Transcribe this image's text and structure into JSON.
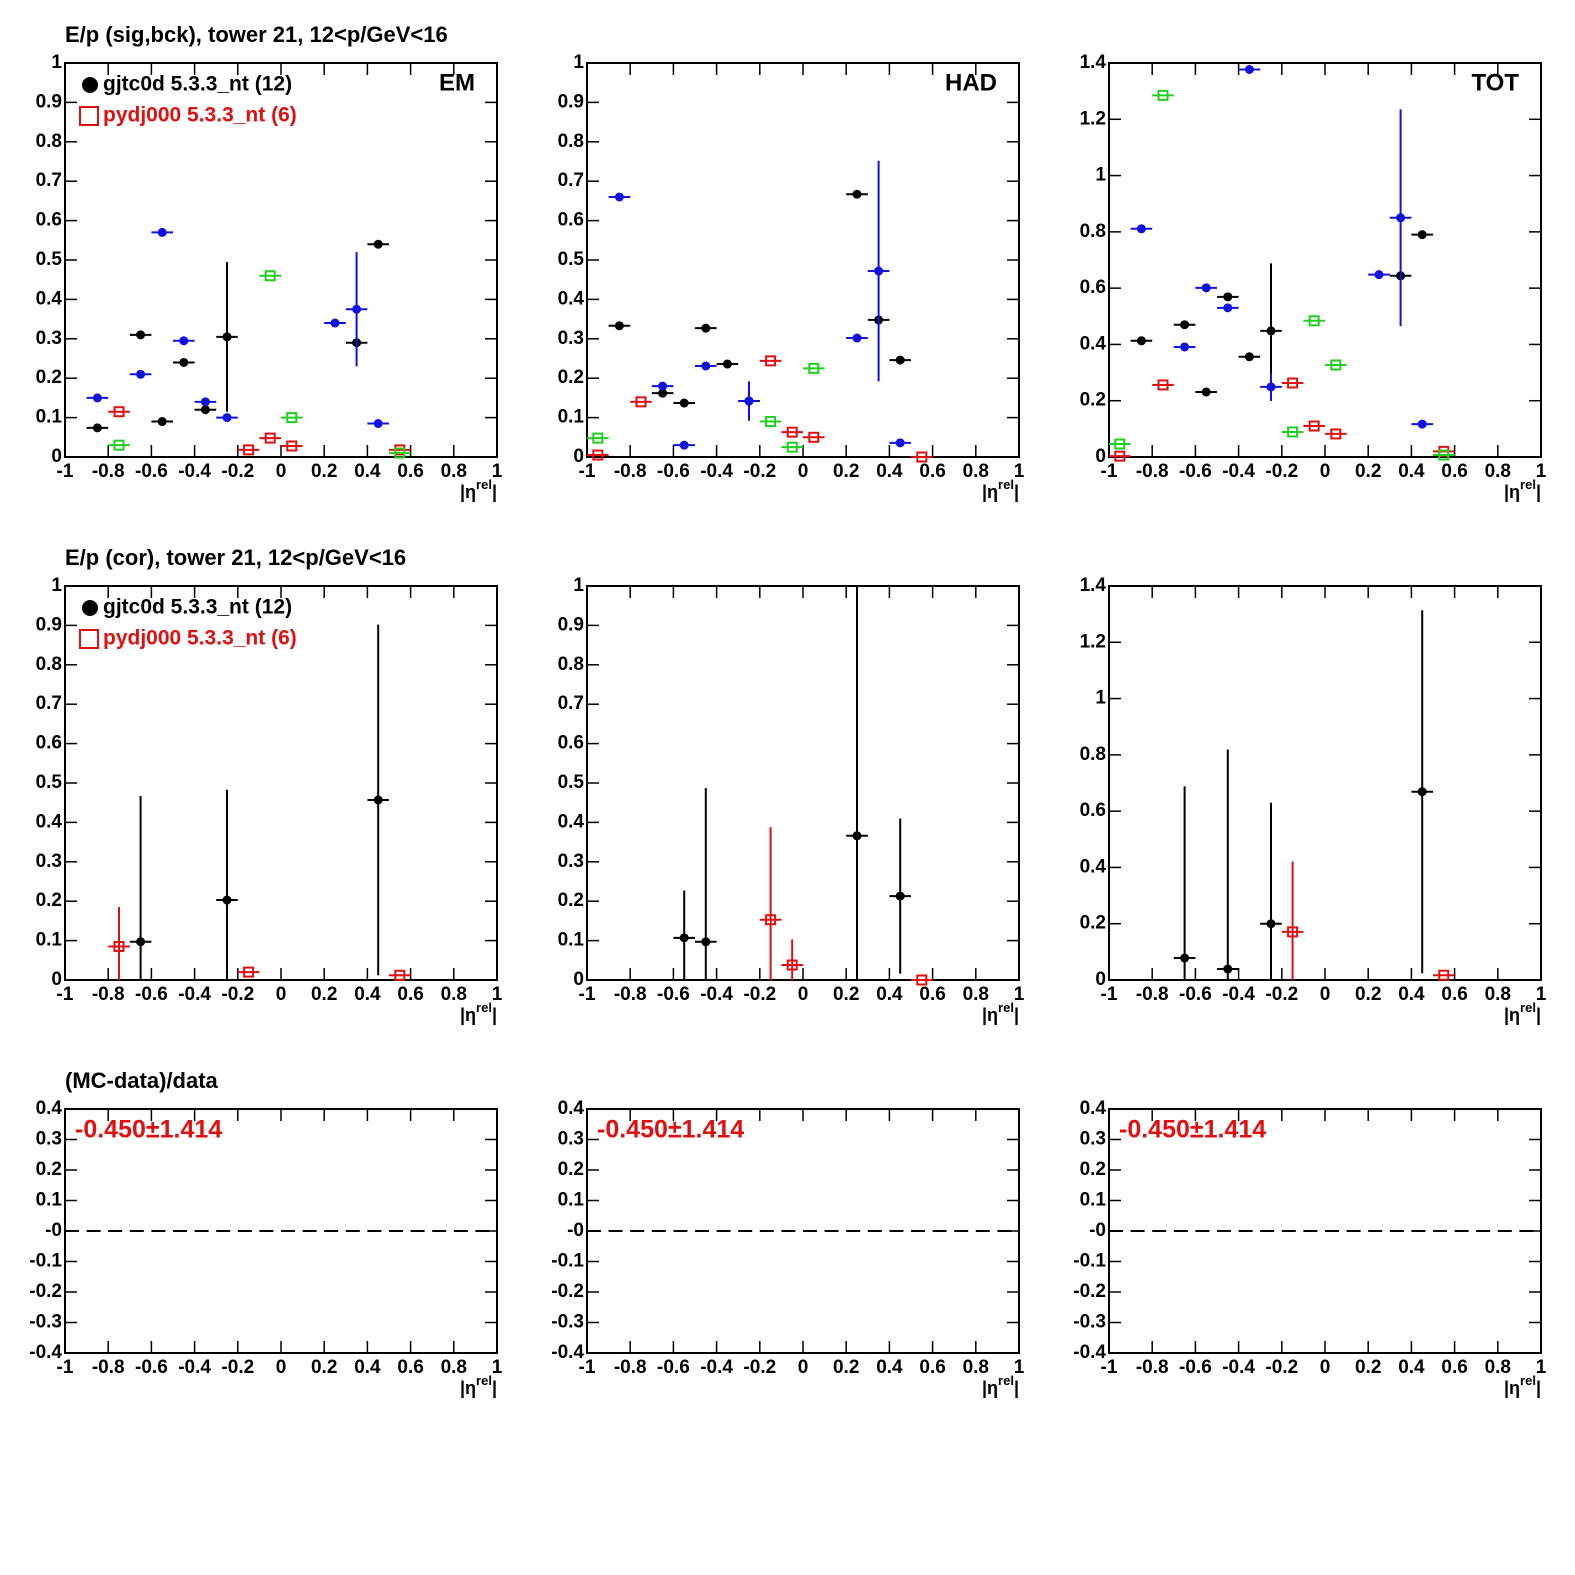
{
  "chart_data": [
    {
      "type": "scatter",
      "title": "E/p (sig,bck), tower 21, 12<p/GeV<16",
      "label": "EM",
      "xlabel": "|η",
      "xlabel_sup": "rel",
      "xlabel_end": "|",
      "xlim": [
        -1,
        1
      ],
      "xticks": [
        -1,
        -0.8,
        -0.6,
        -0.4,
        -0.2,
        0,
        0.2,
        0.4,
        0.6,
        0.8,
        1
      ],
      "ylim": [
        0,
        1
      ],
      "yticks": [
        0,
        0.1,
        0.2,
        0.3,
        0.4,
        0.5,
        0.6,
        0.7,
        0.8,
        0.9,
        1
      ],
      "xerr": 0.05,
      "series": [
        {
          "name": "gjtc0d 5.3.3_nt (12)",
          "color": "#000000",
          "marker": "circle",
          "x": [
            -0.85,
            -0.65,
            -0.55,
            -0.45,
            -0.35,
            -0.25,
            0.35,
            0.45
          ],
          "values": [
            0.074,
            0.31,
            0.09,
            0.24,
            0.12,
            0.305,
            0.29,
            0.54
          ],
          "errors": [
            null,
            null,
            null,
            null,
            null,
            0.19,
            null,
            null
          ]
        },
        {
          "name": "pydj000 5.3.3_nt (6)",
          "color": "#e01010",
          "marker": "open-square",
          "x": [
            -0.75,
            -0.15,
            -0.05,
            0.05,
            0.55
          ],
          "values": [
            0.115,
            0.018,
            0.048,
            0.028,
            0.018
          ]
        },
        {
          "color": "#1010e0",
          "marker": "circle",
          "x": [
            -0.85,
            -0.65,
            -0.55,
            -0.45,
            -0.35,
            -0.25,
            0.25,
            0.35,
            0.45
          ],
          "values": [
            0.15,
            0.21,
            0.57,
            0.295,
            0.14,
            0.1,
            0.34,
            0.375,
            0.085
          ],
          "errors": [
            null,
            null,
            null,
            null,
            null,
            null,
            null,
            0.145,
            null
          ]
        },
        {
          "color": "#20d020",
          "marker": "open-square",
          "x": [
            -0.75,
            -0.05,
            0.05,
            0.55
          ],
          "values": [
            0.03,
            0.46,
            0.1,
            0.01
          ]
        }
      ]
    },
    {
      "type": "scatter",
      "label": "HAD",
      "xlabel": "|η",
      "xlabel_sup": "rel",
      "xlabel_end": "|",
      "xlim": [
        -1,
        1
      ],
      "xticks": [
        -1,
        -0.8,
        -0.6,
        -0.4,
        -0.2,
        0,
        0.2,
        0.4,
        0.6,
        0.8,
        1
      ],
      "ylim": [
        0,
        1
      ],
      "yticks": [
        0,
        0.1,
        0.2,
        0.3,
        0.4,
        0.5,
        0.6,
        0.7,
        0.8,
        0.9,
        1
      ],
      "xerr": 0.05,
      "series": [
        {
          "color": "#000000",
          "marker": "circle",
          "x": [
            -0.85,
            -0.65,
            -0.55,
            -0.45,
            -0.35,
            -0.25,
            0.25,
            0.35,
            0.45
          ],
          "values": [
            0.333,
            0.162,
            0.137,
            0.327,
            0.236,
            0.142,
            0.667,
            0.348,
            0.246
          ]
        },
        {
          "color": "#e01010",
          "marker": "open-square",
          "x": [
            -0.95,
            -0.75,
            -0.15,
            -0.05,
            0.05,
            0.55
          ],
          "values": [
            0.005,
            0.14,
            0.244,
            0.063,
            0.05,
            0
          ]
        },
        {
          "color": "#1010e0",
          "marker": "circle",
          "x": [
            -0.85,
            -0.65,
            -0.55,
            -0.45,
            -0.25,
            0.25,
            0.35,
            0.45
          ],
          "values": [
            0.66,
            0.18,
            0.03,
            0.231,
            0.142,
            0.302,
            0.472,
            0.036
          ],
          "errors": [
            null,
            null,
            null,
            null,
            0.05,
            null,
            0.28,
            null
          ]
        },
        {
          "color": "#20d020",
          "marker": "open-square",
          "x": [
            -0.95,
            -0.15,
            -0.05,
            0.05
          ],
          "values": [
            0.048,
            0.09,
            0.025,
            0.225
          ]
        }
      ]
    },
    {
      "type": "scatter",
      "label": "TOT",
      "xlabel": "|η",
      "xlabel_sup": "rel",
      "xlabel_end": "|",
      "xlim": [
        -1,
        1
      ],
      "xticks": [
        -1,
        -0.8,
        -0.6,
        -0.4,
        -0.2,
        0,
        0.2,
        0.4,
        0.6,
        0.8,
        1
      ],
      "ylim": [
        0,
        1.4
      ],
      "yticks": [
        0,
        0.2,
        0.4,
        0.6,
        0.8,
        1,
        1.2,
        1.4
      ],
      "xerr": 0.05,
      "series": [
        {
          "color": "#000000",
          "marker": "circle",
          "x": [
            -0.85,
            -0.65,
            -0.55,
            -0.45,
            -0.35,
            -0.25,
            0.35,
            0.45
          ],
          "values": [
            0.413,
            0.47,
            0.231,
            0.569,
            0.356,
            0.448,
            0.644,
            0.79
          ],
          "errors": [
            null,
            null,
            null,
            null,
            null,
            0.24,
            null,
            null
          ]
        },
        {
          "color": "#e01010",
          "marker": "open-square",
          "x": [
            -0.95,
            -0.75,
            -0.15,
            -0.05,
            0.05,
            0.55
          ],
          "values": [
            0.003,
            0.256,
            0.263,
            0.11,
            0.082,
            0.02
          ]
        },
        {
          "color": "#1010e0",
          "marker": "circle",
          "x": [
            -0.85,
            -0.65,
            -0.55,
            -0.45,
            -0.35,
            -0.25,
            0.25,
            0.35,
            0.45
          ],
          "values": [
            0.811,
            0.391,
            0.601,
            0.53,
            1.377,
            0.249,
            0.648,
            0.85,
            0.117
          ],
          "errors": [
            null,
            null,
            null,
            null,
            null,
            0.05,
            null,
            0.385,
            null
          ]
        },
        {
          "color": "#20d020",
          "marker": "open-square",
          "x": [
            -0.95,
            -0.75,
            -0.15,
            -0.05,
            0.05,
            0.55
          ],
          "values": [
            0.046,
            1.285,
            0.089,
            0.484,
            0.327,
            0.007
          ]
        }
      ]
    },
    {
      "type": "scatter",
      "title": "E/p (cor), tower 21, 12<p/GeV<16",
      "xlabel": "|η",
      "xlabel_sup": "rel",
      "xlabel_end": "|",
      "xlim": [
        -1,
        1
      ],
      "xticks": [
        -1,
        -0.8,
        -0.6,
        -0.4,
        -0.2,
        0,
        0.2,
        0.4,
        0.6,
        0.8,
        1
      ],
      "ylim": [
        0,
        1
      ],
      "yticks": [
        0,
        0.1,
        0.2,
        0.3,
        0.4,
        0.5,
        0.6,
        0.7,
        0.8,
        0.9,
        1
      ],
      "xerr": 0.05,
      "series": [
        {
          "name": "gjtc0d 5.3.3_nt (12)",
          "color": "#000000",
          "marker": "circle",
          "x": [
            -0.65,
            -0.25,
            0.45
          ],
          "values": [
            0.097,
            0.203,
            0.457
          ],
          "errors": [
            0.37,
            0.28,
            0.445
          ]
        },
        {
          "name": "pydj000 5.3.3_nt (6)",
          "color": "#e01010",
          "marker": "open-square",
          "x": [
            -0.75,
            -0.15,
            0.55
          ],
          "values": [
            0.085,
            0.02,
            0.012
          ],
          "errors": [
            0.1,
            null,
            null
          ]
        }
      ]
    },
    {
      "type": "scatter",
      "xlabel": "|η",
      "xlabel_sup": "rel",
      "xlabel_end": "|",
      "xlim": [
        -1,
        1
      ],
      "xticks": [
        -1,
        -0.8,
        -0.6,
        -0.4,
        -0.2,
        0,
        0.2,
        0.4,
        0.6,
        0.8,
        1
      ],
      "ylim": [
        0,
        1
      ],
      "yticks": [
        0,
        0.1,
        0.2,
        0.3,
        0.4,
        0.5,
        0.6,
        0.7,
        0.8,
        0.9,
        1
      ],
      "xerr": 0.05,
      "series": [
        {
          "color": "#000000",
          "marker": "circle",
          "x": [
            -0.55,
            -0.45,
            0.25,
            0.45
          ],
          "values": [
            0.107,
            0.097,
            0.366,
            0.213
          ],
          "errors": [
            0.12,
            0.39,
            0.634,
            0.197
          ]
        },
        {
          "color": "#e01010",
          "marker": "open-square",
          "x": [
            -0.15,
            -0.05,
            0.55
          ],
          "values": [
            0.153,
            0.038,
            0
          ],
          "errors": [
            0.235,
            0.065,
            null
          ]
        }
      ]
    },
    {
      "type": "scatter",
      "xlabel": "|η",
      "xlabel_sup": "rel",
      "xlabel_end": "|",
      "xlim": [
        -1,
        1
      ],
      "xticks": [
        -1,
        -0.8,
        -0.6,
        -0.4,
        -0.2,
        0,
        0.2,
        0.4,
        0.6,
        0.8,
        1
      ],
      "ylim": [
        0,
        1.4
      ],
      "yticks": [
        0,
        0.2,
        0.4,
        0.6,
        0.8,
        1,
        1.2,
        1.4
      ],
      "xerr": 0.05,
      "series": [
        {
          "color": "#000000",
          "marker": "circle",
          "x": [
            -0.65,
            -0.45,
            -0.25,
            0.45
          ],
          "values": [
            0.078,
            0.039,
            0.2,
            0.669
          ],
          "errors": [
            0.61,
            0.78,
            0.43,
            0.645
          ]
        },
        {
          "color": "#e01010",
          "marker": "open-square",
          "x": [
            -0.15,
            0.55
          ],
          "values": [
            0.171,
            0.017
          ],
          "errors": [
            0.25,
            null
          ]
        }
      ]
    },
    {
      "type": "scatter",
      "title": "(MC-data)/data",
      "annotation": "-0.450±1.414",
      "xlabel": "|η",
      "xlabel_sup": "rel",
      "xlabel_end": "|",
      "xlim": [
        -1,
        1
      ],
      "xticks": [
        -1,
        -0.8,
        -0.6,
        -0.4,
        -0.2,
        0,
        0.2,
        0.4,
        0.6,
        0.8,
        1
      ],
      "ylim": [
        -0.4,
        0.4
      ],
      "yticks": [
        -0.4,
        -0.3,
        -0.2,
        -0.1,
        {
          "value": 0,
          "label": "-0"
        },
        0.1,
        0.2,
        0.3,
        0.4
      ],
      "xerr": 0.05,
      "series": [
        {
          "color": "#000000",
          "marker": "none",
          "x": [
            -0.95,
            -0.85,
            -0.75,
            -0.65,
            -0.55,
            -0.45,
            -0.35,
            -0.25,
            -0.15,
            -0.05,
            0.05,
            0.15,
            0.25,
            0.35,
            0.45,
            0.55,
            0.65,
            0.75,
            0.85,
            0.95
          ],
          "values": [
            0,
            0,
            0,
            0,
            0,
            0,
            0,
            0,
            0,
            0,
            0,
            0,
            0,
            0,
            0,
            0,
            0,
            0,
            0,
            0
          ]
        }
      ]
    },
    {
      "type": "scatter",
      "annotation": "-0.450±1.414",
      "xlabel": "|η",
      "xlabel_sup": "rel",
      "xlabel_end": "|",
      "xlim": [
        -1,
        1
      ],
      "xticks": [
        -1,
        -0.8,
        -0.6,
        -0.4,
        -0.2,
        0,
        0.2,
        0.4,
        0.6,
        0.8,
        1
      ],
      "ylim": [
        -0.4,
        0.4
      ],
      "yticks": [
        -0.4,
        -0.3,
        -0.2,
        -0.1,
        {
          "value": 0,
          "label": "-0"
        },
        0.1,
        0.2,
        0.3,
        0.4
      ],
      "xerr": 0.05,
      "series": [
        {
          "color": "#000000",
          "marker": "none",
          "x": [
            -0.95,
            -0.85,
            -0.75,
            -0.65,
            -0.55,
            -0.45,
            -0.35,
            -0.25,
            -0.15,
            -0.05,
            0.05,
            0.15,
            0.25,
            0.35,
            0.45,
            0.55,
            0.65,
            0.75,
            0.85,
            0.95
          ],
          "values": [
            0,
            0,
            0,
            0,
            0,
            0,
            0,
            0,
            0,
            0,
            0,
            0,
            0,
            0,
            0,
            0,
            0,
            0,
            0,
            0
          ]
        }
      ]
    },
    {
      "type": "scatter",
      "annotation": "-0.450±1.414",
      "xlabel": "|η",
      "xlabel_sup": "rel",
      "xlabel_end": "|",
      "xlim": [
        -1,
        1
      ],
      "xticks": [
        -1,
        -0.8,
        -0.6,
        -0.4,
        -0.2,
        0,
        0.2,
        0.4,
        0.6,
        0.8,
        1
      ],
      "ylim": [
        -0.4,
        0.4
      ],
      "yticks": [
        -0.4,
        -0.3,
        -0.2,
        -0.1,
        {
          "value": 0,
          "label": "-0"
        },
        0.1,
        0.2,
        0.3,
        0.4
      ],
      "xerr": 0.05,
      "series": [
        {
          "color": "#000000",
          "marker": "none",
          "x": [
            -0.95,
            -0.85,
            -0.75,
            -0.65,
            -0.55,
            -0.45,
            -0.35,
            -0.25,
            -0.15,
            -0.05,
            0.05,
            0.15,
            0.25,
            0.35,
            0.45,
            0.55,
            0.65,
            0.75,
            0.85,
            0.95
          ],
          "values": [
            0,
            0,
            0,
            0,
            0,
            0,
            0,
            0,
            0,
            0,
            0,
            0,
            0,
            0,
            0,
            0,
            0,
            0,
            0,
            0
          ]
        }
      ]
    }
  ]
}
